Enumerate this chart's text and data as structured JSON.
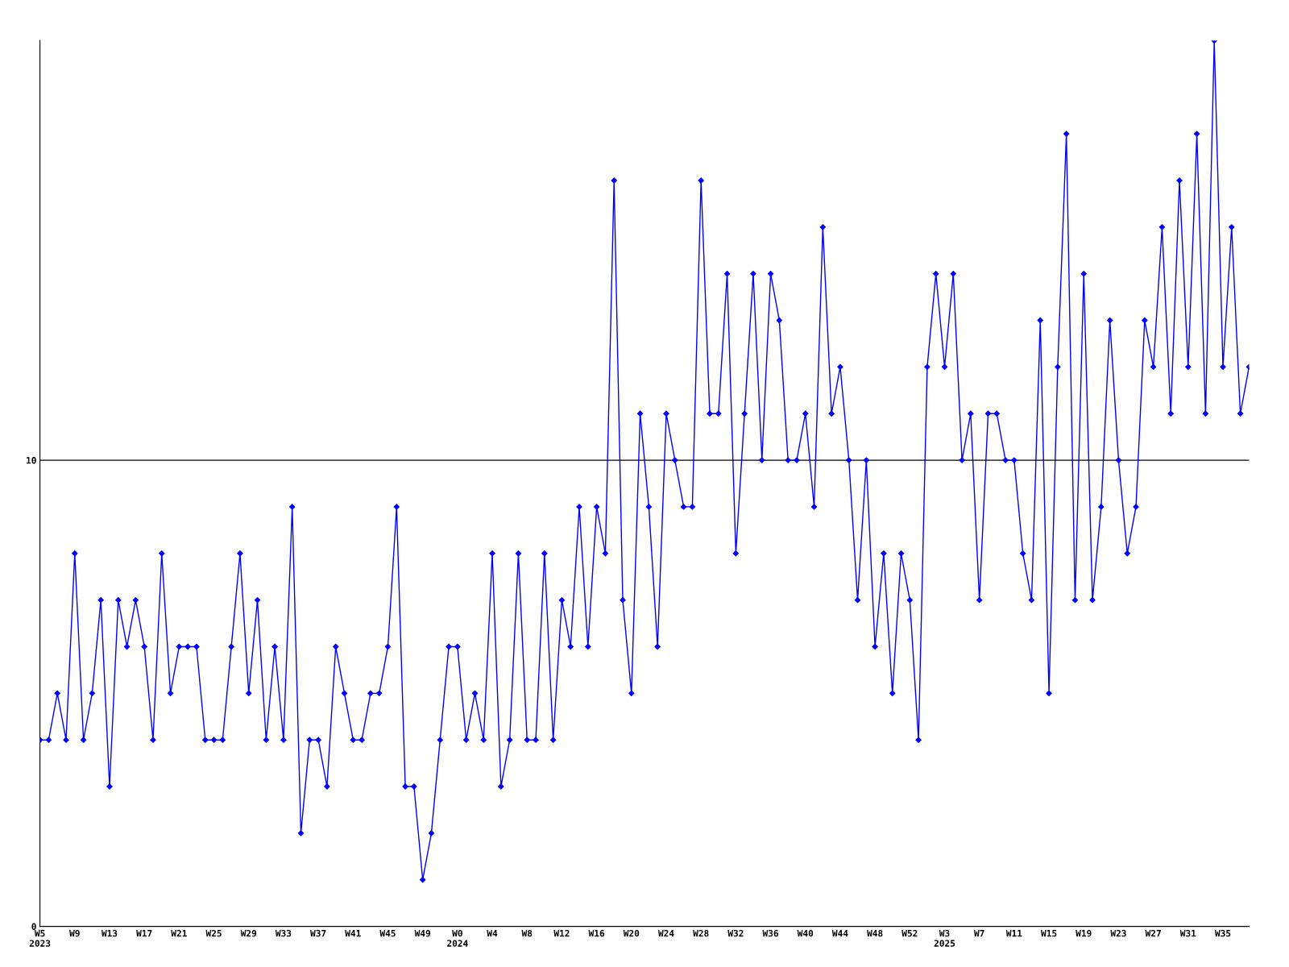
{
  "chart_data": {
    "type": "line",
    "categories": [
      "W5\n2023",
      null,
      null,
      null,
      "W9",
      null,
      null,
      null,
      "W13",
      null,
      null,
      null,
      "W17",
      null,
      null,
      null,
      "W21",
      null,
      null,
      null,
      "W25",
      null,
      null,
      null,
      "W29",
      null,
      null,
      null,
      "W33",
      null,
      null,
      null,
      "W37",
      null,
      null,
      null,
      "W41",
      null,
      null,
      null,
      "W45",
      null,
      null,
      null,
      "W49",
      null,
      null,
      null,
      "W0\n2024",
      null,
      null,
      null,
      "W4",
      null,
      null,
      null,
      "W8",
      null,
      null,
      null,
      "W12",
      null,
      null,
      null,
      "W16",
      null,
      null,
      null,
      "W20",
      null,
      null,
      null,
      "W24",
      null,
      null,
      null,
      "W28",
      null,
      null,
      null,
      "W32",
      null,
      null,
      null,
      "W36",
      null,
      null,
      null,
      "W40",
      null,
      null,
      null,
      "W44",
      null,
      null,
      null,
      "W48",
      null,
      null,
      null,
      "W52",
      null,
      null,
      null,
      "W3\n2025",
      null,
      null,
      null,
      "W7",
      null,
      null,
      null,
      "W11",
      null,
      null,
      null,
      "W15",
      null,
      null,
      null,
      "W19",
      null,
      null,
      null,
      "W23",
      null,
      null,
      null,
      "W27",
      null,
      null,
      null,
      "W31",
      null,
      null,
      null,
      "W35",
      null,
      null,
      null
    ],
    "series": [
      {
        "color": "#0000ff",
        "values": [
          4,
          4,
          5,
          4,
          8,
          4,
          5,
          7,
          3,
          7,
          6,
          7,
          6,
          4,
          8,
          5,
          6,
          6,
          6,
          4,
          4,
          4,
          6,
          8,
          5,
          7,
          4,
          6,
          4,
          9,
          2,
          4,
          4,
          3,
          6,
          5,
          4,
          4,
          5,
          5,
          6,
          9,
          3,
          3,
          1,
          2,
          4,
          6,
          6,
          4,
          5,
          4,
          8,
          3,
          4,
          8,
          4,
          4,
          8,
          4,
          7,
          6,
          9,
          6,
          9,
          8,
          16,
          7,
          5,
          11,
          9,
          6,
          11,
          10,
          9,
          9,
          16,
          11,
          11,
          14,
          8,
          11,
          14,
          10,
          14,
          13,
          10,
          10,
          11,
          9,
          15,
          11,
          12,
          10,
          7,
          10,
          6,
          8,
          5,
          8,
          7,
          4,
          12,
          14,
          12,
          14,
          10,
          11,
          7,
          11,
          11,
          10,
          10,
          8,
          7,
          13,
          5,
          12,
          17,
          7,
          14,
          7,
          9,
          13,
          10,
          8,
          9,
          13,
          12,
          15,
          11,
          16,
          12,
          17,
          11,
          19,
          12,
          15,
          11,
          12
        ]
      }
    ],
    "ylim": [
      0,
      19
    ],
    "yticks": [
      0,
      10
    ],
    "grid": "y",
    "marker": "diamond",
    "line_style": "solid",
    "legend": false
  }
}
